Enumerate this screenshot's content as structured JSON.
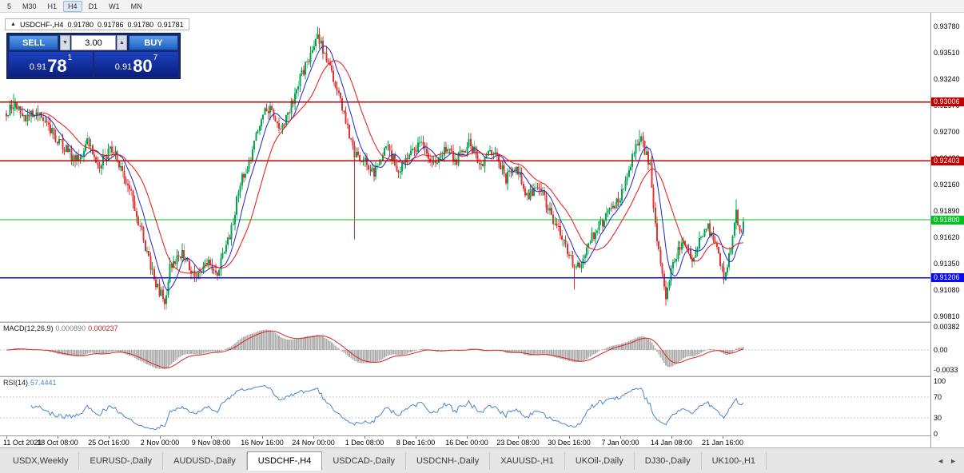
{
  "toolbar": {
    "timeframes": [
      {
        "label": "5",
        "active": false
      },
      {
        "label": "M30",
        "active": false
      },
      {
        "label": "H1",
        "active": false
      },
      {
        "label": "H4",
        "active": true
      },
      {
        "label": "D1",
        "active": false
      },
      {
        "label": "W1",
        "active": false
      },
      {
        "label": "MN",
        "active": false
      }
    ]
  },
  "ohlc_bar": {
    "collapse_icon": "▲",
    "symbol": "USDCHF-,H4",
    "open": "0.91780",
    "high": "0.91786",
    "low": "0.91780",
    "close": "0.91781"
  },
  "quote_panel": {
    "sell_label": "SELL",
    "buy_label": "BUY",
    "volume": "3.00",
    "volume_down_icon": "▼",
    "volume_up_icon": "▲",
    "sell_price": {
      "base": "0.91",
      "big": "78",
      "sup": "1"
    },
    "buy_price": {
      "base": "0.91",
      "big": "80",
      "sup": "7"
    }
  },
  "chart_data": {
    "type": "candlestick",
    "symbol": "USDCHF-",
    "timeframe": "H4",
    "title": "USDCHF-,H4",
    "ylim": [
      0.9076,
      0.9392
    ],
    "bars_total": 420,
    "last_close": 0.91781,
    "up_color": "#00A651",
    "down_color": "#E03434",
    "y_ticks": [
      "0.93780",
      "0.93510",
      "0.93240",
      "0.92970",
      "0.92700",
      "0.92430",
      "0.92160",
      "0.91890",
      "0.91620",
      "0.91350",
      "0.91080",
      "0.90810"
    ],
    "x_labels": [
      "11 Oct 2021",
      "18 Oct 08:00",
      "25 Oct 16:00",
      "2 Nov 00:00",
      "9 Nov 08:00",
      "16 Nov 16:00",
      "24 Nov 00:00",
      "1 Dec 08:00",
      "8 Dec 16:00",
      "16 Dec 00:00",
      "23 Dec 08:00",
      "30 Dec 16:00",
      "7 Jan 00:00",
      "14 Jan 08:00",
      "21 Jan 16:00"
    ],
    "hlines": [
      {
        "price": "0.93006",
        "color": "#C00000"
      },
      {
        "price": "0.92403",
        "color": "#C00000"
      },
      {
        "price": "0.91800",
        "color": "#00C322"
      },
      {
        "price": "0.91206",
        "color": "#0A0AEE"
      }
    ],
    "ma": [
      {
        "period": 9,
        "color": "#2323CC"
      },
      {
        "period": 22,
        "color": "#EE1111"
      }
    ],
    "price_path": [
      [
        0,
        0.9289
      ],
      [
        5,
        0.9299
      ],
      [
        10,
        0.9282
      ],
      [
        17,
        0.9292
      ],
      [
        24,
        0.9273
      ],
      [
        32,
        0.9255
      ],
      [
        40,
        0.9241
      ],
      [
        46,
        0.9259
      ],
      [
        53,
        0.9237
      ],
      [
        60,
        0.9254
      ],
      [
        65,
        0.9235
      ],
      [
        71,
        0.9205
      ],
      [
        78,
        0.916
      ],
      [
        84,
        0.9118
      ],
      [
        90,
        0.9096
      ],
      [
        93,
        0.9132
      ],
      [
        100,
        0.9146
      ],
      [
        107,
        0.9121
      ],
      [
        114,
        0.9138
      ],
      [
        120,
        0.9126
      ],
      [
        127,
        0.9162
      ],
      [
        133,
        0.9218
      ],
      [
        139,
        0.9242
      ],
      [
        145,
        0.9287
      ],
      [
        151,
        0.9294
      ],
      [
        155,
        0.927
      ],
      [
        161,
        0.9293
      ],
      [
        167,
        0.9325
      ],
      [
        174,
        0.9352
      ],
      [
        177,
        0.9371
      ],
      [
        180,
        0.9355
      ],
      [
        186,
        0.9322
      ],
      [
        192,
        0.9288
      ],
      [
        198,
        0.9248
      ],
      [
        203,
        0.9242
      ],
      [
        209,
        0.9226
      ],
      [
        216,
        0.9254
      ],
      [
        223,
        0.9232
      ],
      [
        230,
        0.9247
      ],
      [
        236,
        0.9259
      ],
      [
        243,
        0.9237
      ],
      [
        250,
        0.9251
      ],
      [
        256,
        0.9241
      ],
      [
        263,
        0.9259
      ],
      [
        270,
        0.9237
      ],
      [
        277,
        0.9251
      ],
      [
        284,
        0.9222
      ],
      [
        290,
        0.9233
      ],
      [
        296,
        0.9204
      ],
      [
        303,
        0.9213
      ],
      [
        310,
        0.9184
      ],
      [
        317,
        0.9156
      ],
      [
        324,
        0.9127
      ],
      [
        330,
        0.9152
      ],
      [
        336,
        0.9171
      ],
      [
        343,
        0.9188
      ],
      [
        350,
        0.9206
      ],
      [
        357,
        0.9252
      ],
      [
        361,
        0.9263
      ],
      [
        366,
        0.9235
      ],
      [
        370,
        0.9155
      ],
      [
        375,
        0.9102
      ],
      [
        379,
        0.9137
      ],
      [
        385,
        0.9157
      ],
      [
        390,
        0.9142
      ],
      [
        395,
        0.9163
      ],
      [
        399,
        0.9172
      ],
      [
        404,
        0.9153
      ],
      [
        408,
        0.9117
      ],
      [
        411,
        0.9142
      ],
      [
        415,
        0.9188
      ],
      [
        417,
        0.9165
      ],
      [
        419,
        0.91781
      ]
    ],
    "wick_events": [
      {
        "i": 4,
        "high": 0.9309
      },
      {
        "i": 90,
        "low": 0.90895
      },
      {
        "i": 177,
        "high": 0.93775
      },
      {
        "i": 198,
        "low": 0.916
      },
      {
        "i": 323,
        "low": 0.91085
      },
      {
        "i": 360,
        "high": 0.9272
      },
      {
        "i": 375,
        "low": 0.9092
      },
      {
        "i": 415,
        "high": 0.9201
      }
    ],
    "macd": {
      "label": "MACD(12,26,9)",
      "value_main": "0.000890",
      "value_signal": "0.000237",
      "scale": [
        "0.00382",
        "0.00",
        "-0.0033"
      ],
      "hist_color": "#ABABAB",
      "signal_color": "#DD2222"
    },
    "rsi": {
      "label": "RSI(14)",
      "value": "57.4441",
      "scale": [
        "100",
        "70",
        "30",
        "0"
      ],
      "levels": [
        70,
        30
      ],
      "color": "#4A86C8"
    }
  },
  "bottom_tabs": {
    "active": "USDCHF-,H4",
    "tabs": [
      "USDX,Weekly",
      "EURUSD-,Daily",
      "AUDUSD-,Daily",
      "USDCHF-,H4",
      "USDCAD-,Daily",
      "USDCNH-,Daily",
      "XAUUSD-,H1",
      "UKOil-,Daily",
      "DJ30-,Daily",
      "UK100-,H1"
    ],
    "scroll_left_icon": "◄",
    "scroll_right_icon": "►"
  },
  "colors": {
    "buy_sell_button": "#2E77D9",
    "trade_panel_bg": "#172A6E",
    "price_display_bg": "#10289A"
  }
}
